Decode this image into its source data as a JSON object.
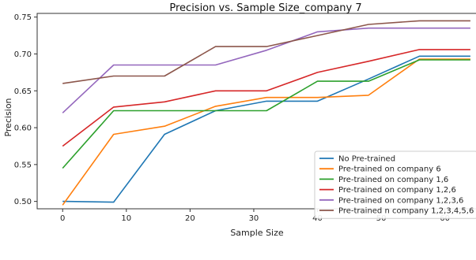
{
  "chart_data": {
    "type": "line",
    "title": "Precision vs. Sample Size_company 7",
    "xlabel": "Sample Size",
    "ylabel": "Precision",
    "xlim": [
      -4,
      66
    ],
    "ylim": [
      0.49,
      0.755
    ],
    "xticks": [
      0,
      10,
      20,
      30,
      40,
      50,
      60
    ],
    "yticks": [
      0.5,
      0.55,
      0.6,
      0.65,
      0.7,
      0.75
    ],
    "ytick_labels": [
      "0.50",
      "0.55",
      "0.60",
      "0.65",
      "0.70",
      "0.75"
    ],
    "grid": false,
    "legend_position": "bottom-right",
    "x": [
      0,
      8,
      16,
      24,
      32,
      40,
      48,
      56,
      64
    ],
    "series": [
      {
        "name": "No Pre-trained",
        "color": "#1f77b4",
        "values": [
          0.5,
          0.499,
          0.591,
          0.623,
          0.636,
          0.636,
          0.666,
          0.697,
          0.697
        ]
      },
      {
        "name": "Pre-trained on company 6",
        "color": "#ff7f0e",
        "values": [
          0.495,
          0.591,
          0.602,
          0.629,
          0.641,
          0.641,
          0.644,
          0.693,
          0.693
        ]
      },
      {
        "name": "Pre-trained on company 1,6",
        "color": "#2ca02c",
        "values": [
          0.545,
          0.623,
          0.623,
          0.623,
          0.623,
          0.663,
          0.663,
          0.692,
          0.692
        ]
      },
      {
        "name": "Pre-trained on company 1,2,6",
        "color": "#d62728",
        "values": [
          0.575,
          0.628,
          0.635,
          0.65,
          0.65,
          0.675,
          0.69,
          0.706,
          0.706
        ]
      },
      {
        "name": "Pre-trained on company 1,2,3,6",
        "color": "#9467bd",
        "values": [
          0.62,
          0.685,
          0.685,
          0.685,
          0.705,
          0.73,
          0.735,
          0.735,
          0.735
        ]
      },
      {
        "name": "Pre-trained n company 1,2,3,4,5,6",
        "color": "#8c564b",
        "values": [
          0.66,
          0.67,
          0.67,
          0.71,
          0.71,
          0.725,
          0.74,
          0.745,
          0.745
        ]
      }
    ]
  }
}
